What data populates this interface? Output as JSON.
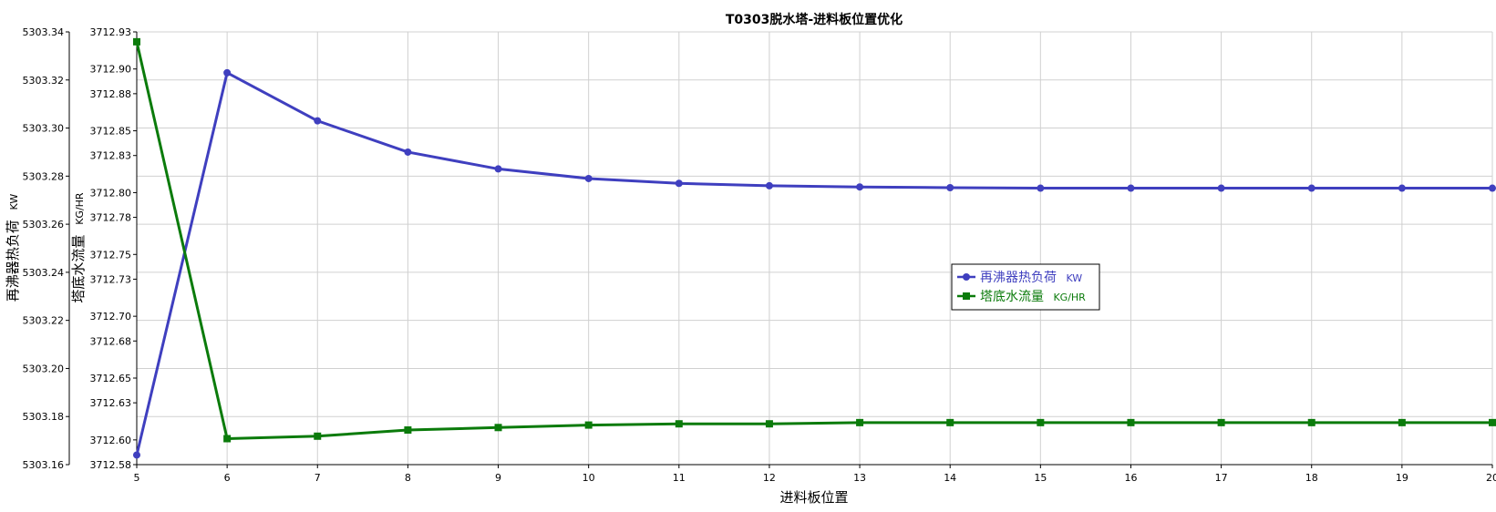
{
  "chart_data": {
    "type": "line",
    "title": "T0303脱水塔-进料板位置优化",
    "xlabel": "进料板位置",
    "x": [
      5,
      6,
      7,
      8,
      9,
      10,
      11,
      12,
      13,
      14,
      15,
      16,
      17,
      18,
      19,
      20
    ],
    "xlim": [
      5,
      20
    ],
    "grid": true,
    "legend_position": "center-right",
    "y_axes": [
      {
        "label": "再沸器热负荷",
        "unit": "KW",
        "ylim": [
          5303.16,
          5303.34
        ],
        "ticks": [
          "5303.16",
          "5303.18",
          "5303.20",
          "5303.22",
          "5303.24",
          "5303.26",
          "5303.28",
          "5303.30",
          "5303.32",
          "5303.34"
        ]
      },
      {
        "label": "塔底水流量",
        "unit": "KG/HR",
        "ylim": [
          3712.58,
          3712.93
        ],
        "ticks": [
          "3712.58",
          "3712.60",
          "3712.63",
          "3712.65",
          "3712.68",
          "3712.70",
          "3712.73",
          "3712.75",
          "3712.78",
          "3712.80",
          "3712.83",
          "3712.85",
          "3712.88",
          "3712.90",
          "3712.93"
        ]
      }
    ],
    "series": [
      {
        "name": "再沸器热负荷",
        "unit": "KW",
        "axis": 0,
        "color": "#3f3fbf",
        "marker": "circle",
        "values": [
          5303.164,
          5303.323,
          5303.303,
          5303.29,
          5303.283,
          5303.279,
          5303.277,
          5303.276,
          5303.2755,
          5303.2752,
          5303.275,
          5303.275,
          5303.275,
          5303.275,
          5303.275,
          5303.275
        ]
      },
      {
        "name": "塔底水流量",
        "unit": "KG/HR",
        "axis": 1,
        "color": "#0b7b0b",
        "marker": "square",
        "values": [
          3712.922,
          3712.601,
          3712.603,
          3712.608,
          3712.61,
          3712.612,
          3712.613,
          3712.613,
          3712.614,
          3712.614,
          3712.614,
          3712.614,
          3712.614,
          3712.614,
          3712.614,
          3712.614
        ]
      }
    ]
  }
}
